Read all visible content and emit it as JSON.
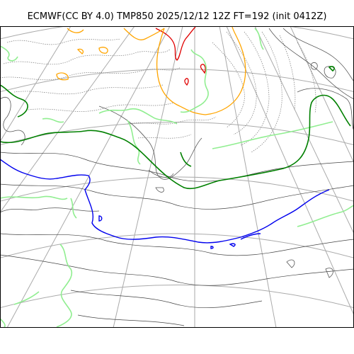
{
  "title": "ECMWF(CC BY 4.0) TMP850 2025/12/12 12Z FT=192 (init 0412Z)",
  "colors": {
    "background": "#ffffff",
    "graticule": "#aaaaaa",
    "coastline": "#555555",
    "isotherm_dotted": "#777777",
    "contour_red": "#e00000",
    "contour_orange": "#ffa500",
    "contour_lightgreen": "#90ee90",
    "contour_green": "#008000",
    "contour_blue": "#0000ee"
  },
  "icons": [
    "graticule-lines",
    "coastline-outline",
    "temperature-contours"
  ]
}
